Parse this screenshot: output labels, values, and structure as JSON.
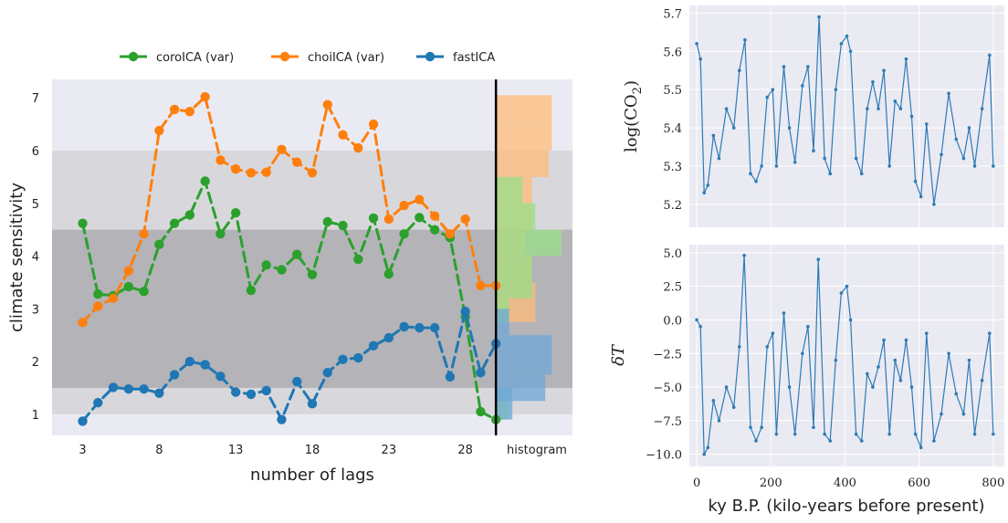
{
  "chart_data": [
    {
      "type": "line",
      "xlabel": "number of lags",
      "ylabel": "climate sensitivity",
      "xlim": [
        1,
        35
      ],
      "ylim": [
        0.6,
        7.35
      ],
      "x_ticks": [
        3,
        8,
        13,
        18,
        23,
        28
      ],
      "x_tick_labels": [
        "3",
        "8",
        "13",
        "18",
        "23",
        "28"
      ],
      "extra_x_label": "histogram",
      "y_ticks": [
        1,
        2,
        3,
        4,
        5,
        6,
        7
      ],
      "y_tick_labels": [
        "1",
        "2",
        "3",
        "4",
        "5",
        "6",
        "7"
      ],
      "legend_placement": "top",
      "bands": [
        {
          "range": [
            1.0,
            6.0
          ],
          "color": "#d8d8dc"
        },
        {
          "range": [
            1.5,
            4.5
          ],
          "color": "#b3b3b8"
        }
      ],
      "vline_x": 30,
      "series": [
        {
          "name": "coroICA (var)",
          "color": "#2ca02c",
          "x": [
            3,
            4,
            5,
            6,
            7,
            8,
            9,
            10,
            11,
            12,
            13,
            14,
            15,
            16,
            17,
            18,
            19,
            20,
            21,
            22,
            23,
            24,
            25,
            26,
            27,
            28,
            29,
            30
          ],
          "values": [
            4.62,
            3.28,
            3.25,
            3.42,
            3.33,
            4.22,
            4.62,
            4.78,
            5.42,
            4.42,
            4.82,
            3.35,
            3.83,
            3.74,
            4.03,
            3.65,
            4.65,
            4.58,
            3.94,
            4.72,
            3.66,
            4.42,
            4.73,
            4.5,
            4.35,
            2.85,
            1.05,
            0.9
          ]
        },
        {
          "name": "choiICA (var)",
          "color": "#ff7f0e",
          "x": [
            3,
            4,
            5,
            6,
            7,
            8,
            9,
            10,
            11,
            12,
            13,
            14,
            15,
            16,
            17,
            18,
            19,
            20,
            21,
            22,
            23,
            24,
            25,
            26,
            27,
            28,
            29,
            30
          ],
          "values": [
            2.74,
            3.05,
            3.2,
            3.72,
            4.42,
            6.38,
            6.78,
            6.74,
            7.02,
            5.82,
            5.65,
            5.58,
            5.59,
            6.02,
            5.78,
            5.58,
            6.87,
            6.3,
            6.05,
            6.5,
            4.7,
            4.96,
            5.07,
            4.76,
            4.42,
            4.7,
            3.44,
            3.44
          ]
        },
        {
          "name": "fastICA",
          "color": "#1f77b4",
          "x": [
            3,
            4,
            5,
            6,
            7,
            8,
            9,
            10,
            11,
            12,
            13,
            14,
            15,
            16,
            17,
            18,
            19,
            20,
            21,
            22,
            23,
            24,
            25,
            26,
            27,
            28,
            29,
            30
          ],
          "values": [
            0.87,
            1.22,
            1.51,
            1.48,
            1.48,
            1.4,
            1.75,
            2.0,
            1.94,
            1.72,
            1.42,
            1.38,
            1.45,
            0.9,
            1.62,
            1.2,
            1.79,
            2.04,
            2.07,
            2.3,
            2.45,
            2.66,
            2.64,
            2.64,
            1.71,
            2.95,
            1.79,
            2.34
          ]
        }
      ],
      "histograms": [
        {
          "series": "choiICA (var)",
          "color": "#ffbb78",
          "bins": [
            [
              2.75,
              3.0,
              0.6
            ],
            [
              3.0,
              3.5,
              0.6
            ],
            [
              3.5,
              4.0,
              0.55
            ],
            [
              4.0,
              4.5,
              0.45
            ],
            [
              4.5,
              5.0,
              0.55
            ],
            [
              5.0,
              5.5,
              0.55
            ],
            [
              5.5,
              6.0,
              0.8
            ],
            [
              6.0,
              6.5,
              0.85
            ],
            [
              6.5,
              7.05,
              0.85
            ]
          ]
        },
        {
          "series": "coroICA (var)",
          "color": "#98df8a",
          "bins": [
            [
              0.9,
              1.5,
              0.2
            ],
            [
              2.75,
              3.2,
              0.2
            ],
            [
              3.2,
              4.0,
              0.55
            ],
            [
              4.0,
              4.5,
              1.0
            ],
            [
              4.5,
              5.0,
              0.6
            ],
            [
              5.0,
              5.5,
              0.4
            ]
          ]
        },
        {
          "series": "fastICA",
          "color": "#6fa8d6",
          "bins": [
            [
              0.9,
              1.5,
              0.25
            ],
            [
              1.25,
              1.75,
              0.75
            ],
            [
              1.75,
              2.5,
              0.85
            ],
            [
              2.5,
              3.0,
              0.2
            ]
          ]
        }
      ]
    },
    {
      "type": "line",
      "ylabel": "log(CO₂)",
      "ylabel_main": "log(CO",
      "ylabel_sub": "2",
      "xlim": [
        -20,
        830
      ],
      "ylim": [
        5.14,
        5.72
      ],
      "y_ticks": [
        5.2,
        5.3,
        5.4,
        5.5,
        5.6,
        5.7
      ],
      "y_tick_labels": [
        "5.2",
        "5.3",
        "5.4",
        "5.5",
        "5.6",
        "5.7"
      ],
      "series": [
        {
          "name": "",
          "color": "#2c7bb6",
          "x": [
            0,
            10,
            20,
            30,
            45,
            60,
            80,
            100,
            115,
            130,
            145,
            160,
            175,
            190,
            205,
            215,
            235,
            250,
            265,
            285,
            300,
            315,
            330,
            345,
            360,
            375,
            390,
            405,
            415,
            430,
            445,
            460,
            475,
            490,
            505,
            520,
            535,
            550,
            565,
            580,
            590,
            605,
            620,
            640,
            660,
            680,
            700,
            720,
            735,
            750,
            770,
            790,
            800
          ],
          "values": [
            5.62,
            5.58,
            5.23,
            5.25,
            5.38,
            5.32,
            5.45,
            5.4,
            5.55,
            5.63,
            5.28,
            5.26,
            5.3,
            5.48,
            5.5,
            5.3,
            5.56,
            5.4,
            5.31,
            5.51,
            5.56,
            5.34,
            5.69,
            5.32,
            5.28,
            5.5,
            5.62,
            5.64,
            5.6,
            5.32,
            5.28,
            5.45,
            5.52,
            5.45,
            5.55,
            5.3,
            5.47,
            5.45,
            5.58,
            5.43,
            5.26,
            5.22,
            5.41,
            5.2,
            5.33,
            5.49,
            5.37,
            5.32,
            5.4,
            5.3,
            5.45,
            5.59,
            5.3
          ]
        }
      ]
    },
    {
      "type": "line",
      "ylabel": "δT",
      "xlabel": "ky B.P. (kilo-years before present)",
      "xlim": [
        -20,
        830
      ],
      "ylim": [
        -10.9,
        5.6
      ],
      "x_ticks": [
        0,
        200,
        400,
        600,
        800
      ],
      "x_tick_labels": [
        "0",
        "200",
        "400",
        "600",
        "800"
      ],
      "y_ticks": [
        -10.0,
        -7.5,
        -5.0,
        -2.5,
        0.0,
        2.5,
        5.0
      ],
      "y_tick_labels": [
        "−10.0",
        "−7.5",
        "−5.0",
        "−2.5",
        "0.0",
        "2.5",
        "5.0"
      ],
      "series": [
        {
          "name": "",
          "color": "#2c7bb6",
          "x": [
            0,
            10,
            20,
            30,
            45,
            60,
            80,
            100,
            115,
            128,
            145,
            160,
            175,
            190,
            205,
            215,
            235,
            250,
            265,
            285,
            300,
            315,
            328,
            345,
            360,
            375,
            390,
            405,
            415,
            430,
            445,
            460,
            475,
            490,
            505,
            520,
            535,
            550,
            565,
            580,
            590,
            605,
            620,
            640,
            660,
            680,
            700,
            720,
            735,
            750,
            770,
            790,
            800
          ],
          "values": [
            0.0,
            -0.5,
            -10.0,
            -9.5,
            -6.0,
            -7.5,
            -5.0,
            -6.5,
            -2.0,
            4.8,
            -8.0,
            -9.0,
            -8.0,
            -2.0,
            -1.0,
            -8.5,
            0.5,
            -5.0,
            -8.5,
            -2.5,
            -0.5,
            -8.0,
            4.5,
            -8.5,
            -9.0,
            -3.0,
            2.0,
            2.5,
            0.0,
            -8.5,
            -9.0,
            -4.0,
            -5.0,
            -3.5,
            -1.5,
            -8.5,
            -3.0,
            -4.5,
            -1.5,
            -5.0,
            -8.5,
            -9.5,
            -1.0,
            -9.0,
            -7.0,
            -2.5,
            -5.5,
            -7.0,
            -3.0,
            -8.5,
            -4.5,
            -1.0,
            -8.5
          ]
        }
      ]
    }
  ]
}
